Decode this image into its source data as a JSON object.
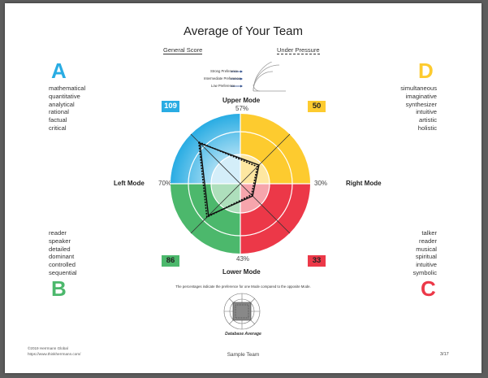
{
  "title": "Average of Your Team",
  "legend": {
    "general_score": "General Score",
    "under_pressure": "Under Pressure",
    "levels": [
      "Strong Preference",
      "Intermediate Preference",
      "Low Preference"
    ]
  },
  "quadrants": {
    "A": {
      "letter": "A",
      "score": "109",
      "color": "#29ace3",
      "traits": [
        "mathematical",
        "quantitative",
        "analytical",
        "rational",
        "factual",
        "critical"
      ]
    },
    "B": {
      "letter": "B",
      "score": "86",
      "color": "#4cb86c",
      "traits": [
        "reader",
        "speaker",
        "detailed",
        "dominant",
        "controlled",
        "sequential"
      ]
    },
    "C": {
      "letter": "C",
      "score": "33",
      "color": "#ec3848",
      "traits": [
        "talker",
        "reader",
        "musical",
        "spiritual",
        "intuitive",
        "symbolic"
      ]
    },
    "D": {
      "letter": "D",
      "score": "50",
      "color": "#fdcb2f",
      "traits": [
        "simultaneous",
        "imaginative",
        "synthesizer",
        "intuitive",
        "artistic",
        "holistic"
      ]
    }
  },
  "modes": {
    "upper": {
      "label": "Upper Mode",
      "pct": "57%"
    },
    "lower": {
      "label": "Lower Mode",
      "pct": "43%"
    },
    "left": {
      "label": "Left Mode",
      "pct": "70%"
    },
    "right": {
      "label": "Right Mode",
      "pct": "30%"
    }
  },
  "note": "The percentages indicate the preference for one Mode compared to the opposite Mode.",
  "database_label": "Database Average",
  "footer": {
    "copyright": "©2019 Herrmann Global",
    "url": "https://www.thinkherrmann.com/",
    "center": "Sample Team",
    "page": "3/17"
  },
  "chart_data": {
    "type": "radar",
    "axes": [
      "A (upper-left)",
      "D (upper-right)",
      "C (lower-right)",
      "B (lower-left)"
    ],
    "series": [
      {
        "name": "General Score",
        "values": [
          109,
          50,
          33,
          86
        ]
      },
      {
        "name": "Under Pressure",
        "values": [
          112,
          46,
          30,
          90
        ]
      }
    ],
    "max": 133
  }
}
